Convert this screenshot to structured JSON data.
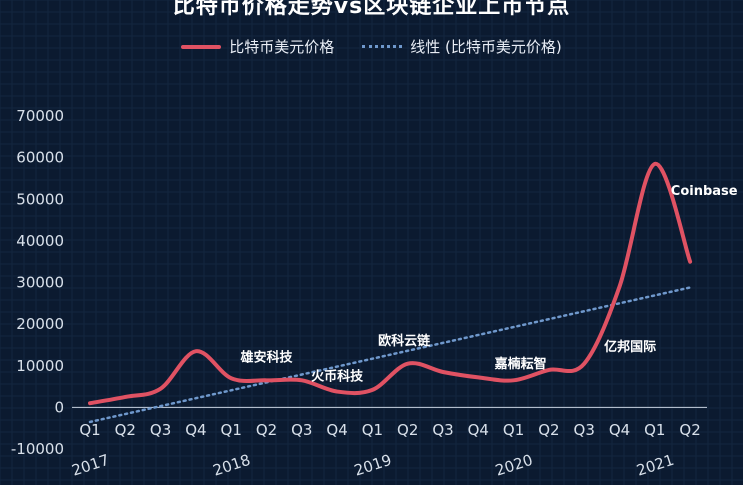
{
  "chart_data": {
    "type": "line",
    "title": "比特币价格走势vs区块链企业上市节点",
    "ylim": [
      -10000,
      70000
    ],
    "yticks": [
      70000,
      60000,
      50000,
      40000,
      30000,
      20000,
      10000,
      0,
      -10000
    ],
    "categories": [
      "Q1",
      "Q2",
      "Q3",
      "Q4",
      "Q1",
      "Q2",
      "Q3",
      "Q4",
      "Q1",
      "Q2",
      "Q3",
      "Q4",
      "Q1",
      "Q2",
      "Q3",
      "Q4",
      "Q1",
      "Q2"
    ],
    "years": [
      {
        "label": "2017",
        "index": 0
      },
      {
        "label": "2018",
        "index": 4
      },
      {
        "label": "2019",
        "index": 8
      },
      {
        "label": "2020",
        "index": 12
      },
      {
        "label": "2021",
        "index": 16
      }
    ],
    "series": [
      {
        "name": "比特币美元价格",
        "color": "#e05263",
        "values": [
          1000,
          2500,
          4500,
          13500,
          7000,
          6500,
          6500,
          3800,
          4200,
          10500,
          8500,
          7200,
          6500,
          9000,
          10500,
          29000,
          58500,
          35000
        ]
      },
      {
        "name": "线性 (比特币美元价格)",
        "color": "#6f98cc",
        "style": "dotted",
        "values": [
          -3500,
          -1600,
          300,
          2200,
          4100,
          6000,
          7900,
          9800,
          11700,
          13600,
          15500,
          17400,
          19300,
          21200,
          23100,
          25000,
          26900,
          28800
        ]
      }
    ],
    "annotations": [
      {
        "text": "雄安科技",
        "index": 5,
        "value": 11000
      },
      {
        "text": "火币科技",
        "index": 7,
        "value": 6500
      },
      {
        "text": "欧科云链",
        "index": 8.9,
        "value": 15000
      },
      {
        "text": "嘉楠耘智",
        "index": 12.2,
        "value": 9500
      },
      {
        "text": "亿邦国际",
        "index": 15.3,
        "value": 13500
      },
      {
        "text": "Coinbase",
        "index": 17.4,
        "value": 51000
      }
    ],
    "legend_position": "top"
  }
}
